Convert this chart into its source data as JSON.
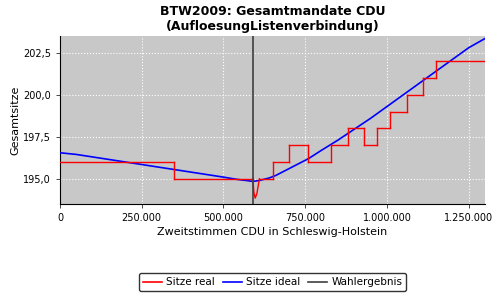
{
  "title": "BTW2009: Gesamtmandate CDU\n(AufloesungListenverbindung)",
  "xlabel": "Zweitstimmen CDU in Schleswig-Holstein",
  "ylabel": "Gesamtsitze",
  "xlim": [
    0,
    1300000
  ],
  "ylim": [
    193.5,
    203.5
  ],
  "wahlergebnis_x": 590000,
  "yticks": [
    195.0,
    197.5,
    200.0,
    202.5
  ],
  "xticks": [
    0,
    250000,
    500000,
    750000,
    1000000,
    1250000
  ],
  "xtick_labels": [
    "0",
    "250.000",
    "500.000",
    "750.000",
    "1.000.000",
    "1.250.000"
  ],
  "ytick_labels": [
    "195,0",
    "197,5",
    "200,0",
    "202,5"
  ],
  "background_color": "#c8c8c8",
  "line_real_color": "red",
  "line_ideal_color": "blue",
  "line_wahlergebnis_color": "#404040",
  "legend_labels": [
    "Sitze real",
    "Sitze ideal",
    "Wahlergebnis"
  ],
  "ideal_x": [
    0,
    50000,
    100000,
    150000,
    200000,
    250000,
    300000,
    350000,
    400000,
    450000,
    500000,
    540000,
    560000,
    570000,
    580000,
    585000,
    590000,
    595000,
    600000,
    610000,
    620000,
    640000,
    660000,
    680000,
    700000,
    730000,
    760000,
    800000,
    850000,
    900000,
    950000,
    1000000,
    1050000,
    1100000,
    1150000,
    1200000,
    1250000,
    1300000
  ],
  "ideal_y": [
    196.55,
    196.45,
    196.3,
    196.15,
    196.0,
    195.85,
    195.7,
    195.55,
    195.4,
    195.25,
    195.1,
    194.97,
    194.92,
    194.9,
    194.87,
    194.86,
    194.85,
    194.86,
    194.87,
    194.9,
    194.95,
    195.05,
    195.2,
    195.4,
    195.6,
    195.9,
    196.2,
    196.7,
    197.3,
    197.95,
    198.6,
    199.3,
    200.0,
    200.7,
    201.4,
    202.1,
    202.8,
    203.35
  ],
  "real_segments": [
    {
      "x": [
        0,
        350000
      ],
      "y": [
        196.0,
        196.0
      ]
    },
    {
      "x": [
        350000,
        350000
      ],
      "y": [
        196.0,
        195.0
      ]
    },
    {
      "x": [
        350000,
        500000
      ],
      "y": [
        195.0,
        195.0
      ]
    },
    {
      "x": [
        500000,
        500000
      ],
      "y": [
        195.0,
        195.0
      ]
    },
    {
      "x": [
        500000,
        590000
      ],
      "y": [
        195.0,
        195.0
      ]
    },
    {
      "x": [
        590000,
        593000,
        597000,
        602000,
        610000
      ],
      "y": [
        195.0,
        194.2,
        193.85,
        194.1,
        195.0
      ]
    },
    {
      "x": [
        610000,
        650000
      ],
      "y": [
        195.0,
        195.0
      ]
    },
    {
      "x": [
        650000,
        650000
      ],
      "y": [
        195.0,
        196.0
      ]
    },
    {
      "x": [
        650000,
        700000
      ],
      "y": [
        196.0,
        196.0
      ]
    },
    {
      "x": [
        700000,
        700000
      ],
      "y": [
        196.0,
        197.0
      ]
    },
    {
      "x": [
        700000,
        760000
      ],
      "y": [
        197.0,
        197.0
      ]
    },
    {
      "x": [
        760000,
        760000
      ],
      "y": [
        197.0,
        196.0
      ]
    },
    {
      "x": [
        760000,
        830000
      ],
      "y": [
        196.0,
        196.0
      ]
    },
    {
      "x": [
        830000,
        830000
      ],
      "y": [
        196.0,
        197.0
      ]
    },
    {
      "x": [
        830000,
        880000
      ],
      "y": [
        197.0,
        197.0
      ]
    },
    {
      "x": [
        880000,
        880000
      ],
      "y": [
        197.0,
        198.0
      ]
    },
    {
      "x": [
        880000,
        930000
      ],
      "y": [
        198.0,
        198.0
      ]
    },
    {
      "x": [
        930000,
        930000
      ],
      "y": [
        198.0,
        197.0
      ]
    },
    {
      "x": [
        930000,
        970000
      ],
      "y": [
        197.0,
        197.0
      ]
    },
    {
      "x": [
        970000,
        970000
      ],
      "y": [
        197.0,
        198.0
      ]
    },
    {
      "x": [
        970000,
        1010000
      ],
      "y": [
        198.0,
        198.0
      ]
    },
    {
      "x": [
        1010000,
        1010000
      ],
      "y": [
        198.0,
        199.0
      ]
    },
    {
      "x": [
        1010000,
        1060000
      ],
      "y": [
        199.0,
        199.0
      ]
    },
    {
      "x": [
        1060000,
        1060000
      ],
      "y": [
        199.0,
        200.0
      ]
    },
    {
      "x": [
        1060000,
        1110000
      ],
      "y": [
        200.0,
        200.0
      ]
    },
    {
      "x": [
        1110000,
        1110000
      ],
      "y": [
        200.0,
        201.0
      ]
    },
    {
      "x": [
        1110000,
        1150000
      ],
      "y": [
        201.0,
        201.0
      ]
    },
    {
      "x": [
        1150000,
        1150000
      ],
      "y": [
        201.0,
        202.0
      ]
    },
    {
      "x": [
        1150000,
        1300000
      ],
      "y": [
        202.0,
        202.0
      ]
    }
  ]
}
